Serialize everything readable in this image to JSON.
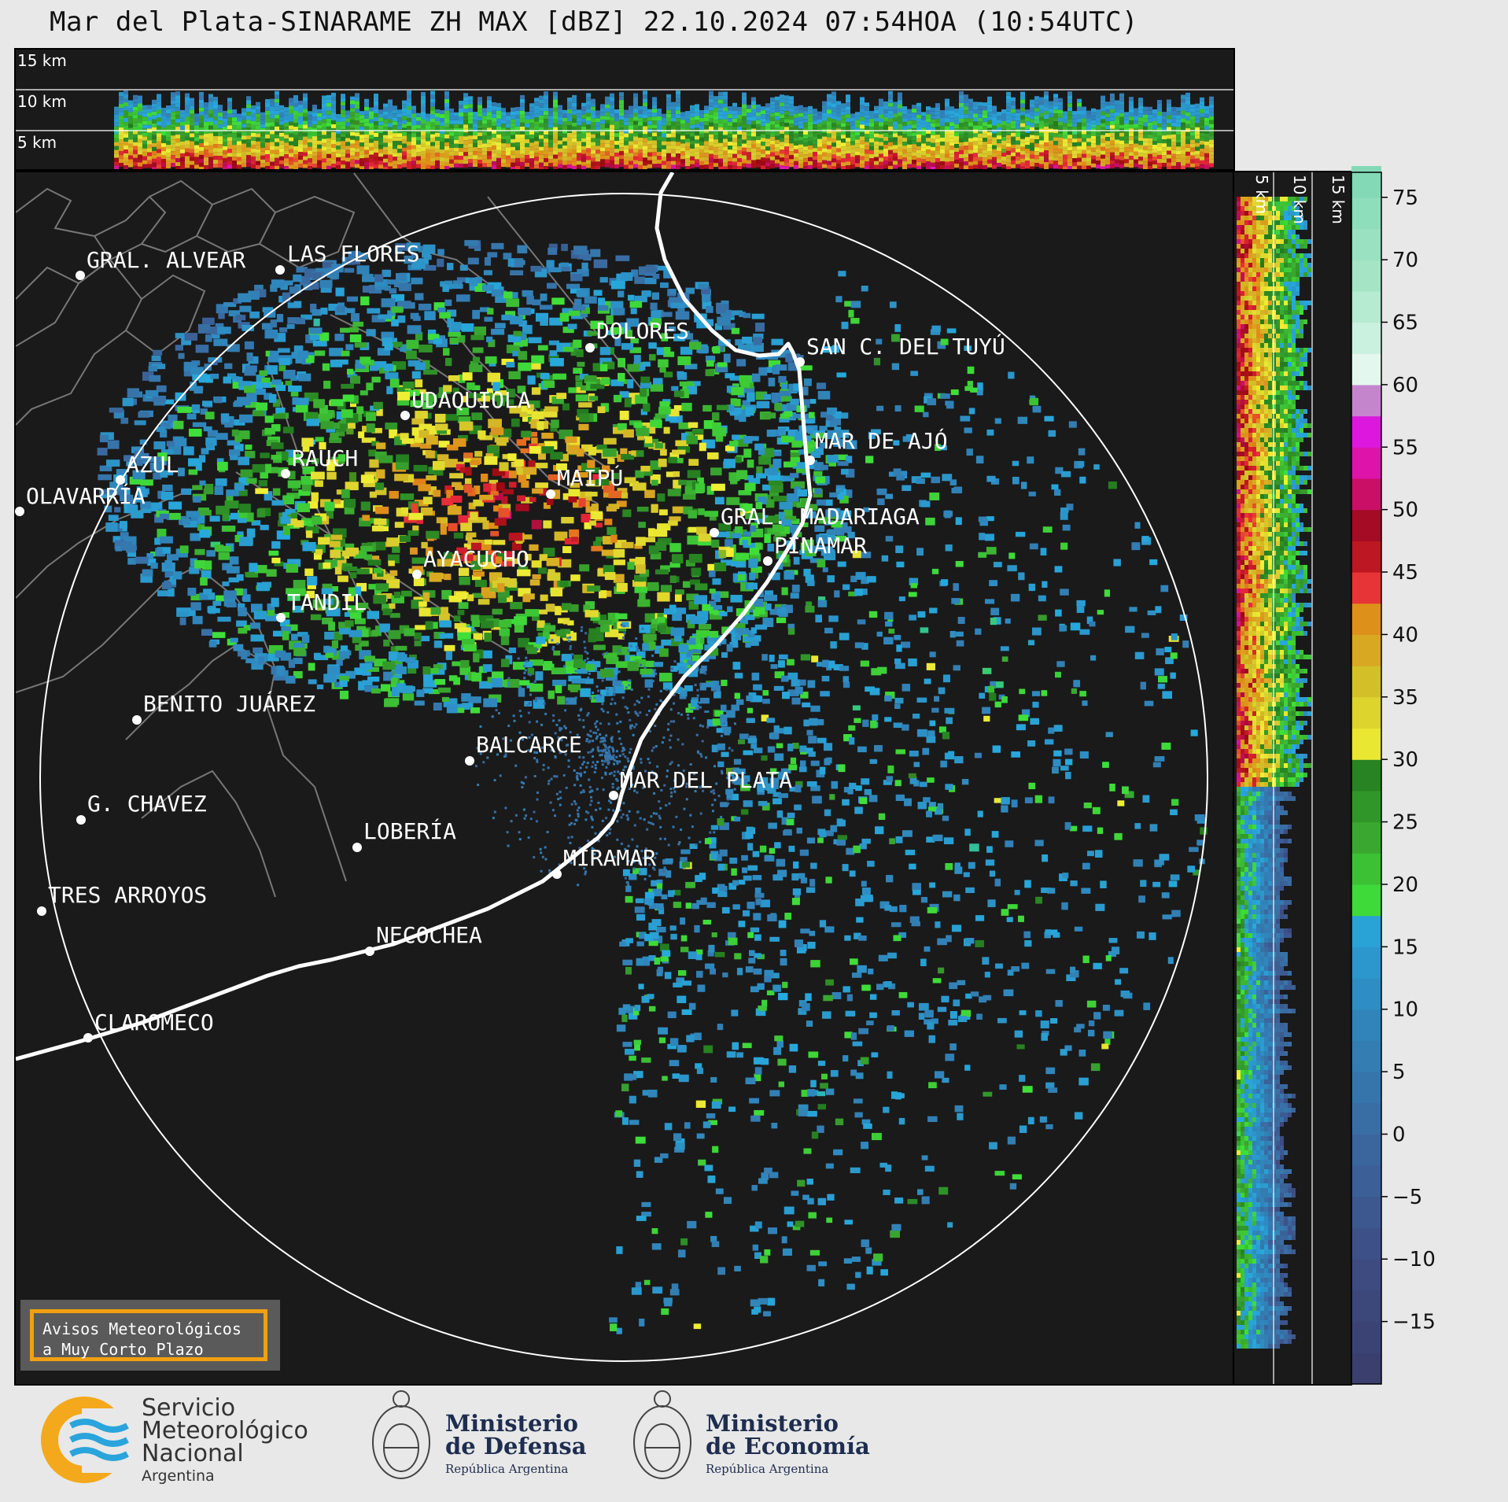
{
  "title": "Mar del Plata-SINARAME ZH MAX [dBZ] 22.10.2024 07:54HOA (10:54UTC)",
  "top_panel": {
    "km_labels": [
      "15 km",
      "10 km",
      "5 km"
    ]
  },
  "side_panel": {
    "km_labels": [
      "5 km",
      "10 km",
      "15 km"
    ]
  },
  "colorbar": {
    "ticks": [
      "75",
      "70",
      "65",
      "60",
      "55",
      "50",
      "45",
      "40",
      "35",
      "30",
      "25",
      "20",
      "15",
      "10",
      "5",
      "0",
      "−5",
      "−10",
      "−15"
    ],
    "range": [
      -20,
      77
    ],
    "stops": [
      {
        "v": -20,
        "c": "#3a3d6a"
      },
      {
        "v": -10,
        "c": "#3d4d84"
      },
      {
        "v": 0,
        "c": "#3a6aa0"
      },
      {
        "v": 10,
        "c": "#2f88bd"
      },
      {
        "v": 18,
        "c": "#27a9dc"
      },
      {
        "v": 18.1,
        "c": "#3fe03a"
      },
      {
        "v": 24,
        "c": "#3aa630"
      },
      {
        "v": 30,
        "c": "#237a1e"
      },
      {
        "v": 30.1,
        "c": "#f0f035"
      },
      {
        "v": 36,
        "c": "#d2c22a"
      },
      {
        "v": 42,
        "c": "#e08a18"
      },
      {
        "v": 44,
        "c": "#e8283a"
      },
      {
        "v": 48,
        "c": "#9a0a10"
      },
      {
        "v": 52,
        "c": "#d4107a"
      },
      {
        "v": 56,
        "c": "#e81ae8"
      },
      {
        "v": 58,
        "c": "#8a0a9a"
      },
      {
        "v": 59.5,
        "c": "#ffffff"
      },
      {
        "v": 62,
        "c": "#d8f4e8"
      },
      {
        "v": 68,
        "c": "#a8e6c8"
      },
      {
        "v": 77,
        "c": "#80d8b4"
      }
    ]
  },
  "cities": [
    {
      "name": "GRAL. ALVEAR"
    },
    {
      "name": "LAS FLORES"
    },
    {
      "name": "DOLORES"
    },
    {
      "name": "SAN C. DEL TUYÚ"
    },
    {
      "name": "UDAQUIOLA"
    },
    {
      "name": "MAR DE AJÓ"
    },
    {
      "name": "AZUL"
    },
    {
      "name": "RAUCH"
    },
    {
      "name": "MAIPÚ"
    },
    {
      "name": "OLAVARRÍA"
    },
    {
      "name": "GRAL. MADARIAGA"
    },
    {
      "name": "PINAMAR"
    },
    {
      "name": "AYACUCHO"
    },
    {
      "name": "TANDIL"
    },
    {
      "name": "BENITO JUÁREZ"
    },
    {
      "name": "BALCARCE"
    },
    {
      "name": "MAR DEL PLATA"
    },
    {
      "name": "G. CHAVEZ"
    },
    {
      "name": "LOBERÍA"
    },
    {
      "name": "MIRAMAR"
    },
    {
      "name": "TRES ARROYOS"
    },
    {
      "name": "NECOCHEA"
    },
    {
      "name": "CLAROMECO"
    }
  ],
  "avisos": {
    "line1": "Avisos Meteorológicos",
    "line2": "a Muy Corto Plazo"
  },
  "logos": {
    "smn": {
      "line1": "Servicio",
      "line2": "Meteorológico",
      "line3": "Nacional",
      "line4": "Argentina"
    },
    "defensa": {
      "line1": "Ministerio",
      "line2": "de Defensa",
      "line3": "República Argentina"
    },
    "economia": {
      "line1": "Ministerio",
      "line2": "de Economía",
      "line3": "República Argentina"
    }
  }
}
